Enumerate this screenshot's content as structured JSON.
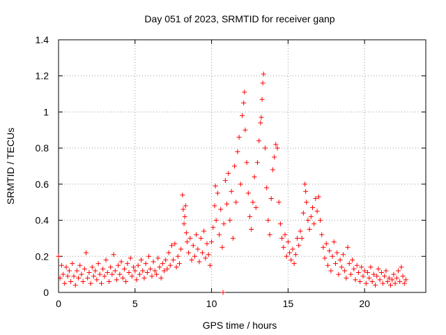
{
  "chart_data": {
    "type": "scatter",
    "title": "Day 051 of 2023, SRMTID for receiver ganp",
    "xlabel": "GPS time / hours",
    "ylabel": "SRMTID / TECUs",
    "xlim": [
      0,
      24
    ],
    "ylim": [
      0,
      1.4
    ],
    "x_ticks": [
      0,
      5,
      10,
      15,
      20
    ],
    "x_tick_labels": [
      "0",
      "5",
      "10",
      "15",
      "20"
    ],
    "y_ticks": [
      0,
      0.2,
      0.4,
      0.6,
      0.8,
      1.0,
      1.2,
      1.4
    ],
    "y_tick_labels": [
      "0",
      "0.2",
      "0.4",
      "0.6",
      "0.8",
      "1",
      "1.2",
      "1.4"
    ],
    "grid": true,
    "marker": "+",
    "series": [
      {
        "name": "SRMTID",
        "color": "#ff0000",
        "points": [
          [
            0.0,
            0.2
          ],
          [
            0.1,
            0.08
          ],
          [
            0.2,
            0.15
          ],
          [
            0.3,
            0.1
          ],
          [
            0.4,
            0.05
          ],
          [
            0.5,
            0.14
          ],
          [
            0.6,
            0.09
          ],
          [
            0.7,
            0.12
          ],
          [
            0.8,
            0.06
          ],
          [
            0.9,
            0.16
          ],
          [
            1.0,
            0.09
          ],
          [
            1.1,
            0.04
          ],
          [
            1.2,
            0.12
          ],
          [
            1.3,
            0.08
          ],
          [
            1.4,
            0.15
          ],
          [
            1.5,
            0.1
          ],
          [
            1.6,
            0.06
          ],
          [
            1.7,
            0.13
          ],
          [
            1.8,
            0.22
          ],
          [
            1.9,
            0.08
          ],
          [
            2.0,
            0.11
          ],
          [
            2.1,
            0.05
          ],
          [
            2.2,
            0.14
          ],
          [
            2.3,
            0.09
          ],
          [
            2.4,
            0.12
          ],
          [
            2.5,
            0.07
          ],
          [
            2.6,
            0.16
          ],
          [
            2.7,
            0.1
          ],
          [
            2.8,
            0.05
          ],
          [
            2.9,
            0.13
          ],
          [
            3.0,
            0.09
          ],
          [
            3.1,
            0.18
          ],
          [
            3.2,
            0.11
          ],
          [
            3.3,
            0.06
          ],
          [
            3.4,
            0.14
          ],
          [
            3.5,
            0.1
          ],
          [
            3.6,
            0.21
          ],
          [
            3.7,
            0.12
          ],
          [
            3.8,
            0.07
          ],
          [
            3.9,
            0.15
          ],
          [
            4.0,
            0.1
          ],
          [
            4.1,
            0.17
          ],
          [
            4.2,
            0.08
          ],
          [
            4.3,
            0.13
          ],
          [
            4.4,
            0.06
          ],
          [
            4.5,
            0.16
          ],
          [
            4.6,
            0.11
          ],
          [
            4.7,
            0.19
          ],
          [
            4.8,
            0.09
          ],
          [
            4.9,
            0.14
          ],
          [
            5.0,
            0.12
          ],
          [
            5.1,
            0.07
          ],
          [
            5.2,
            0.15
          ],
          [
            5.3,
            0.1
          ],
          [
            5.4,
            0.18
          ],
          [
            5.5,
            0.12
          ],
          [
            5.6,
            0.08
          ],
          [
            5.7,
            0.16
          ],
          [
            5.8,
            0.11
          ],
          [
            5.9,
            0.2
          ],
          [
            6.0,
            0.13
          ],
          [
            6.1,
            0.09
          ],
          [
            6.2,
            0.17
          ],
          [
            6.3,
            0.12
          ],
          [
            6.4,
            0.1
          ],
          [
            6.5,
            0.19
          ],
          [
            6.6,
            0.14
          ],
          [
            6.7,
            0.08
          ],
          [
            6.8,
            0.16
          ],
          [
            6.9,
            0.12
          ],
          [
            7.0,
            0.18
          ],
          [
            7.1,
            0.13
          ],
          [
            7.2,
            0.22
          ],
          [
            7.3,
            0.15
          ],
          [
            7.4,
            0.26
          ],
          [
            7.5,
            0.18
          ],
          [
            7.6,
            0.27
          ],
          [
            7.7,
            0.14
          ],
          [
            7.8,
            0.2
          ],
          [
            7.9,
            0.16
          ],
          [
            8.0,
            0.24
          ],
          [
            8.1,
            0.54
          ],
          [
            8.15,
            0.46
          ],
          [
            8.2,
            0.38
          ],
          [
            8.25,
            0.42
          ],
          [
            8.3,
            0.48
          ],
          [
            8.35,
            0.33
          ],
          [
            8.4,
            0.28
          ],
          [
            8.5,
            0.22
          ],
          [
            8.6,
            0.3
          ],
          [
            8.7,
            0.18
          ],
          [
            8.8,
            0.26
          ],
          [
            8.9,
            0.2
          ],
          [
            9.0,
            0.32
          ],
          [
            9.1,
            0.24
          ],
          [
            9.2,
            0.17
          ],
          [
            9.3,
            0.3
          ],
          [
            9.4,
            0.22
          ],
          [
            9.5,
            0.34
          ],
          [
            9.6,
            0.19
          ],
          [
            9.7,
            0.27
          ],
          [
            9.8,
            0.21
          ],
          [
            9.9,
            0.15
          ],
          [
            10.0,
            0.28
          ],
          [
            10.1,
            0.36
          ],
          [
            10.2,
            0.48
          ],
          [
            10.25,
            0.59
          ],
          [
            10.3,
            0.4
          ],
          [
            10.4,
            0.55
          ],
          [
            10.5,
            0.32
          ],
          [
            10.6,
            0.46
          ],
          [
            10.7,
            0.25
          ],
          [
            10.75,
            0.0
          ],
          [
            10.8,
            0.38
          ],
          [
            10.9,
            0.62
          ],
          [
            11.0,
            0.49
          ],
          [
            11.1,
            0.66
          ],
          [
            11.2,
            0.4
          ],
          [
            11.3,
            0.56
          ],
          [
            11.4,
            0.3
          ],
          [
            11.5,
            0.7
          ],
          [
            11.6,
            0.5
          ],
          [
            11.7,
            0.78
          ],
          [
            11.8,
            0.86
          ],
          [
            11.9,
            0.6
          ],
          [
            12.0,
            0.98
          ],
          [
            12.1,
            1.05
          ],
          [
            12.15,
            1.11
          ],
          [
            12.2,
            0.9
          ],
          [
            12.3,
            0.72
          ],
          [
            12.4,
            0.55
          ],
          [
            12.5,
            0.42
          ],
          [
            12.6,
            0.35
          ],
          [
            12.7,
            0.5
          ],
          [
            12.8,
            0.64
          ],
          [
            12.9,
            0.47
          ],
          [
            13.0,
            0.72
          ],
          [
            13.1,
            0.84
          ],
          [
            13.2,
            0.94
          ],
          [
            13.25,
            0.97
          ],
          [
            13.3,
            1.07
          ],
          [
            13.35,
            1.16
          ],
          [
            13.4,
            1.21
          ],
          [
            13.5,
            0.8
          ],
          [
            13.6,
            0.58
          ],
          [
            13.7,
            0.4
          ],
          [
            13.8,
            0.32
          ],
          [
            13.9,
            0.52
          ],
          [
            14.0,
            0.68
          ],
          [
            14.1,
            0.75
          ],
          [
            14.2,
            0.82
          ],
          [
            14.3,
            0.8
          ],
          [
            14.4,
            0.5
          ],
          [
            14.5,
            0.38
          ],
          [
            14.6,
            0.3
          ],
          [
            14.7,
            0.25
          ],
          [
            14.8,
            0.32
          ],
          [
            14.9,
            0.2
          ],
          [
            15.0,
            0.28
          ],
          [
            15.1,
            0.22
          ],
          [
            15.2,
            0.18
          ],
          [
            15.3,
            0.24
          ],
          [
            15.4,
            0.16
          ],
          [
            15.5,
            0.21
          ],
          [
            15.6,
            0.3
          ],
          [
            15.7,
            0.26
          ],
          [
            15.8,
            0.34
          ],
          [
            15.9,
            0.3
          ],
          [
            16.0,
            0.44
          ],
          [
            16.1,
            0.6
          ],
          [
            16.15,
            0.56
          ],
          [
            16.2,
            0.5
          ],
          [
            16.3,
            0.4
          ],
          [
            16.4,
            0.35
          ],
          [
            16.5,
            0.42
          ],
          [
            16.6,
            0.47
          ],
          [
            16.7,
            0.38
          ],
          [
            16.8,
            0.52
          ],
          [
            16.9,
            0.45
          ],
          [
            17.0,
            0.53
          ],
          [
            17.1,
            0.4
          ],
          [
            17.2,
            0.32
          ],
          [
            17.3,
            0.25
          ],
          [
            17.4,
            0.19
          ],
          [
            17.5,
            0.27
          ],
          [
            17.6,
            0.15
          ],
          [
            17.7,
            0.23
          ],
          [
            17.8,
            0.12
          ],
          [
            17.9,
            0.2
          ],
          [
            18.0,
            0.28
          ],
          [
            18.1,
            0.16
          ],
          [
            18.2,
            0.22
          ],
          [
            18.3,
            0.1
          ],
          [
            18.4,
            0.18
          ],
          [
            18.5,
            0.14
          ],
          [
            18.6,
            0.21
          ],
          [
            18.7,
            0.12
          ],
          [
            18.8,
            0.08
          ],
          [
            18.9,
            0.25
          ],
          [
            19.0,
            0.16
          ],
          [
            19.1,
            0.1
          ],
          [
            19.2,
            0.18
          ],
          [
            19.3,
            0.13
          ],
          [
            19.4,
            0.07
          ],
          [
            19.5,
            0.15
          ],
          [
            19.6,
            0.11
          ],
          [
            19.7,
            0.06
          ],
          [
            19.8,
            0.14
          ],
          [
            19.9,
            0.09
          ],
          [
            20.0,
            0.12
          ],
          [
            20.1,
            0.05
          ],
          [
            20.2,
            0.11
          ],
          [
            20.3,
            0.08
          ],
          [
            20.4,
            0.14
          ],
          [
            20.5,
            0.06
          ],
          [
            20.6,
            0.1
          ],
          [
            20.7,
            0.04
          ],
          [
            20.8,
            0.09
          ],
          [
            20.9,
            0.13
          ],
          [
            21.0,
            0.07
          ],
          [
            21.1,
            0.11
          ],
          [
            21.2,
            0.05
          ],
          [
            21.3,
            0.09
          ],
          [
            21.4,
            0.12
          ],
          [
            21.5,
            0.06
          ],
          [
            21.6,
            0.08
          ],
          [
            21.7,
            0.04
          ],
          [
            21.8,
            0.07
          ],
          [
            21.9,
            0.1
          ],
          [
            22.0,
            0.05
          ],
          [
            22.1,
            0.08
          ],
          [
            22.2,
            0.12
          ],
          [
            22.3,
            0.06
          ],
          [
            22.4,
            0.14
          ],
          [
            22.5,
            0.09
          ],
          [
            22.6,
            0.05
          ],
          [
            22.7,
            0.07
          ]
        ]
      }
    ]
  }
}
